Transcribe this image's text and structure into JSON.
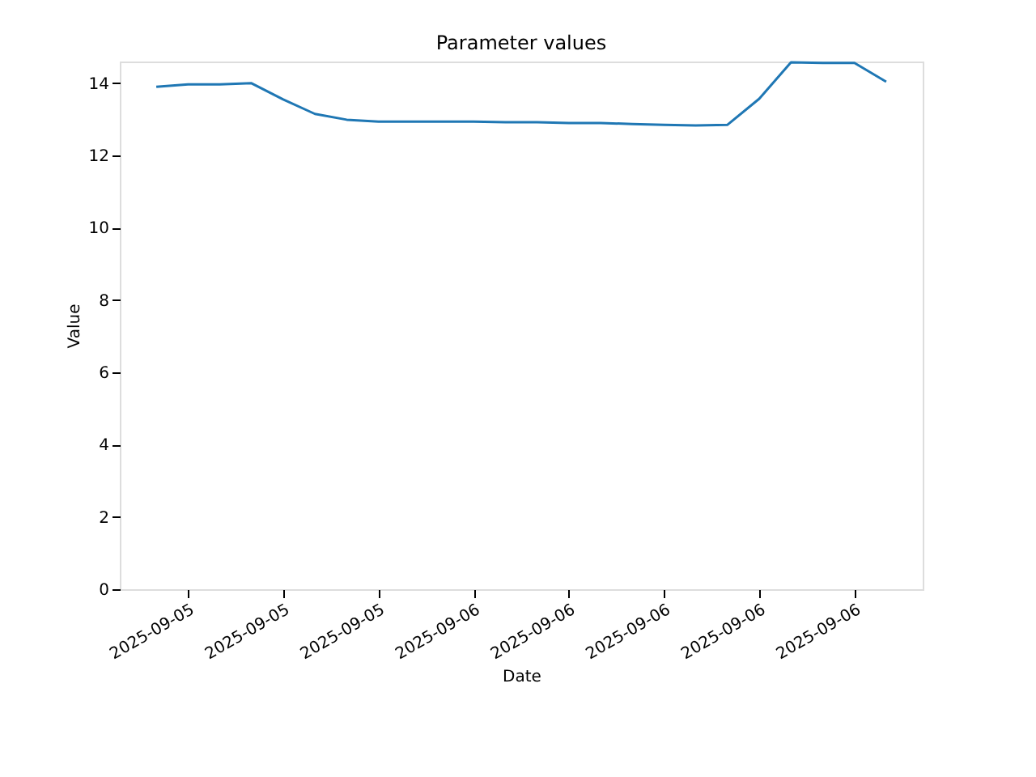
{
  "chart_data": {
    "type": "line",
    "title": "Parameter values",
    "xlabel": "Date",
    "ylabel": "Value",
    "x": [
      "2025-09-05T14:00",
      "2025-09-05T15:00",
      "2025-09-05T16:00",
      "2025-09-05T17:00",
      "2025-09-05T18:00",
      "2025-09-05T19:00",
      "2025-09-05T20:00",
      "2025-09-05T21:00",
      "2025-09-05T22:00",
      "2025-09-05T23:00",
      "2025-09-06T00:00",
      "2025-09-06T01:00",
      "2025-09-06T02:00",
      "2025-09-06T03:00",
      "2025-09-06T04:00",
      "2025-09-06T05:00",
      "2025-09-06T06:00",
      "2025-09-06T07:00",
      "2025-09-06T08:00",
      "2025-09-06T09:00",
      "2025-09-06T10:00",
      "2025-09-06T11:00",
      "2025-09-06T12:00",
      "2025-09-06T13:00"
    ],
    "series": [
      {
        "color": "#1f77b4",
        "values": [
          13.9,
          13.97,
          13.97,
          14.0,
          13.55,
          13.15,
          12.99,
          12.94,
          12.94,
          12.94,
          12.94,
          12.92,
          12.92,
          12.9,
          12.9,
          12.87,
          12.85,
          12.83,
          12.85,
          13.57,
          14.58,
          14.56,
          14.56,
          14.04
        ]
      }
    ],
    "xlim": [
      "2025-09-05T12:51",
      "2025-09-06T14:09"
    ],
    "xticks": [
      {
        "value": "2025-09-05T15:00",
        "label": "2025-09-05"
      },
      {
        "value": "2025-09-05T18:00",
        "label": "2025-09-05"
      },
      {
        "value": "2025-09-05T21:00",
        "label": "2025-09-05"
      },
      {
        "value": "2025-09-06T00:00",
        "label": "2025-09-06"
      },
      {
        "value": "2025-09-06T03:00",
        "label": "2025-09-06"
      },
      {
        "value": "2025-09-06T06:00",
        "label": "2025-09-06"
      },
      {
        "value": "2025-09-06T09:00",
        "label": "2025-09-06"
      },
      {
        "value": "2025-09-06T12:00",
        "label": "2025-09-06"
      }
    ],
    "ylim": [
      0,
      14.6
    ],
    "yticks": [
      0,
      2,
      4,
      6,
      8,
      10,
      12,
      14
    ],
    "grid": false,
    "marker": "none",
    "line_style": "solid"
  }
}
